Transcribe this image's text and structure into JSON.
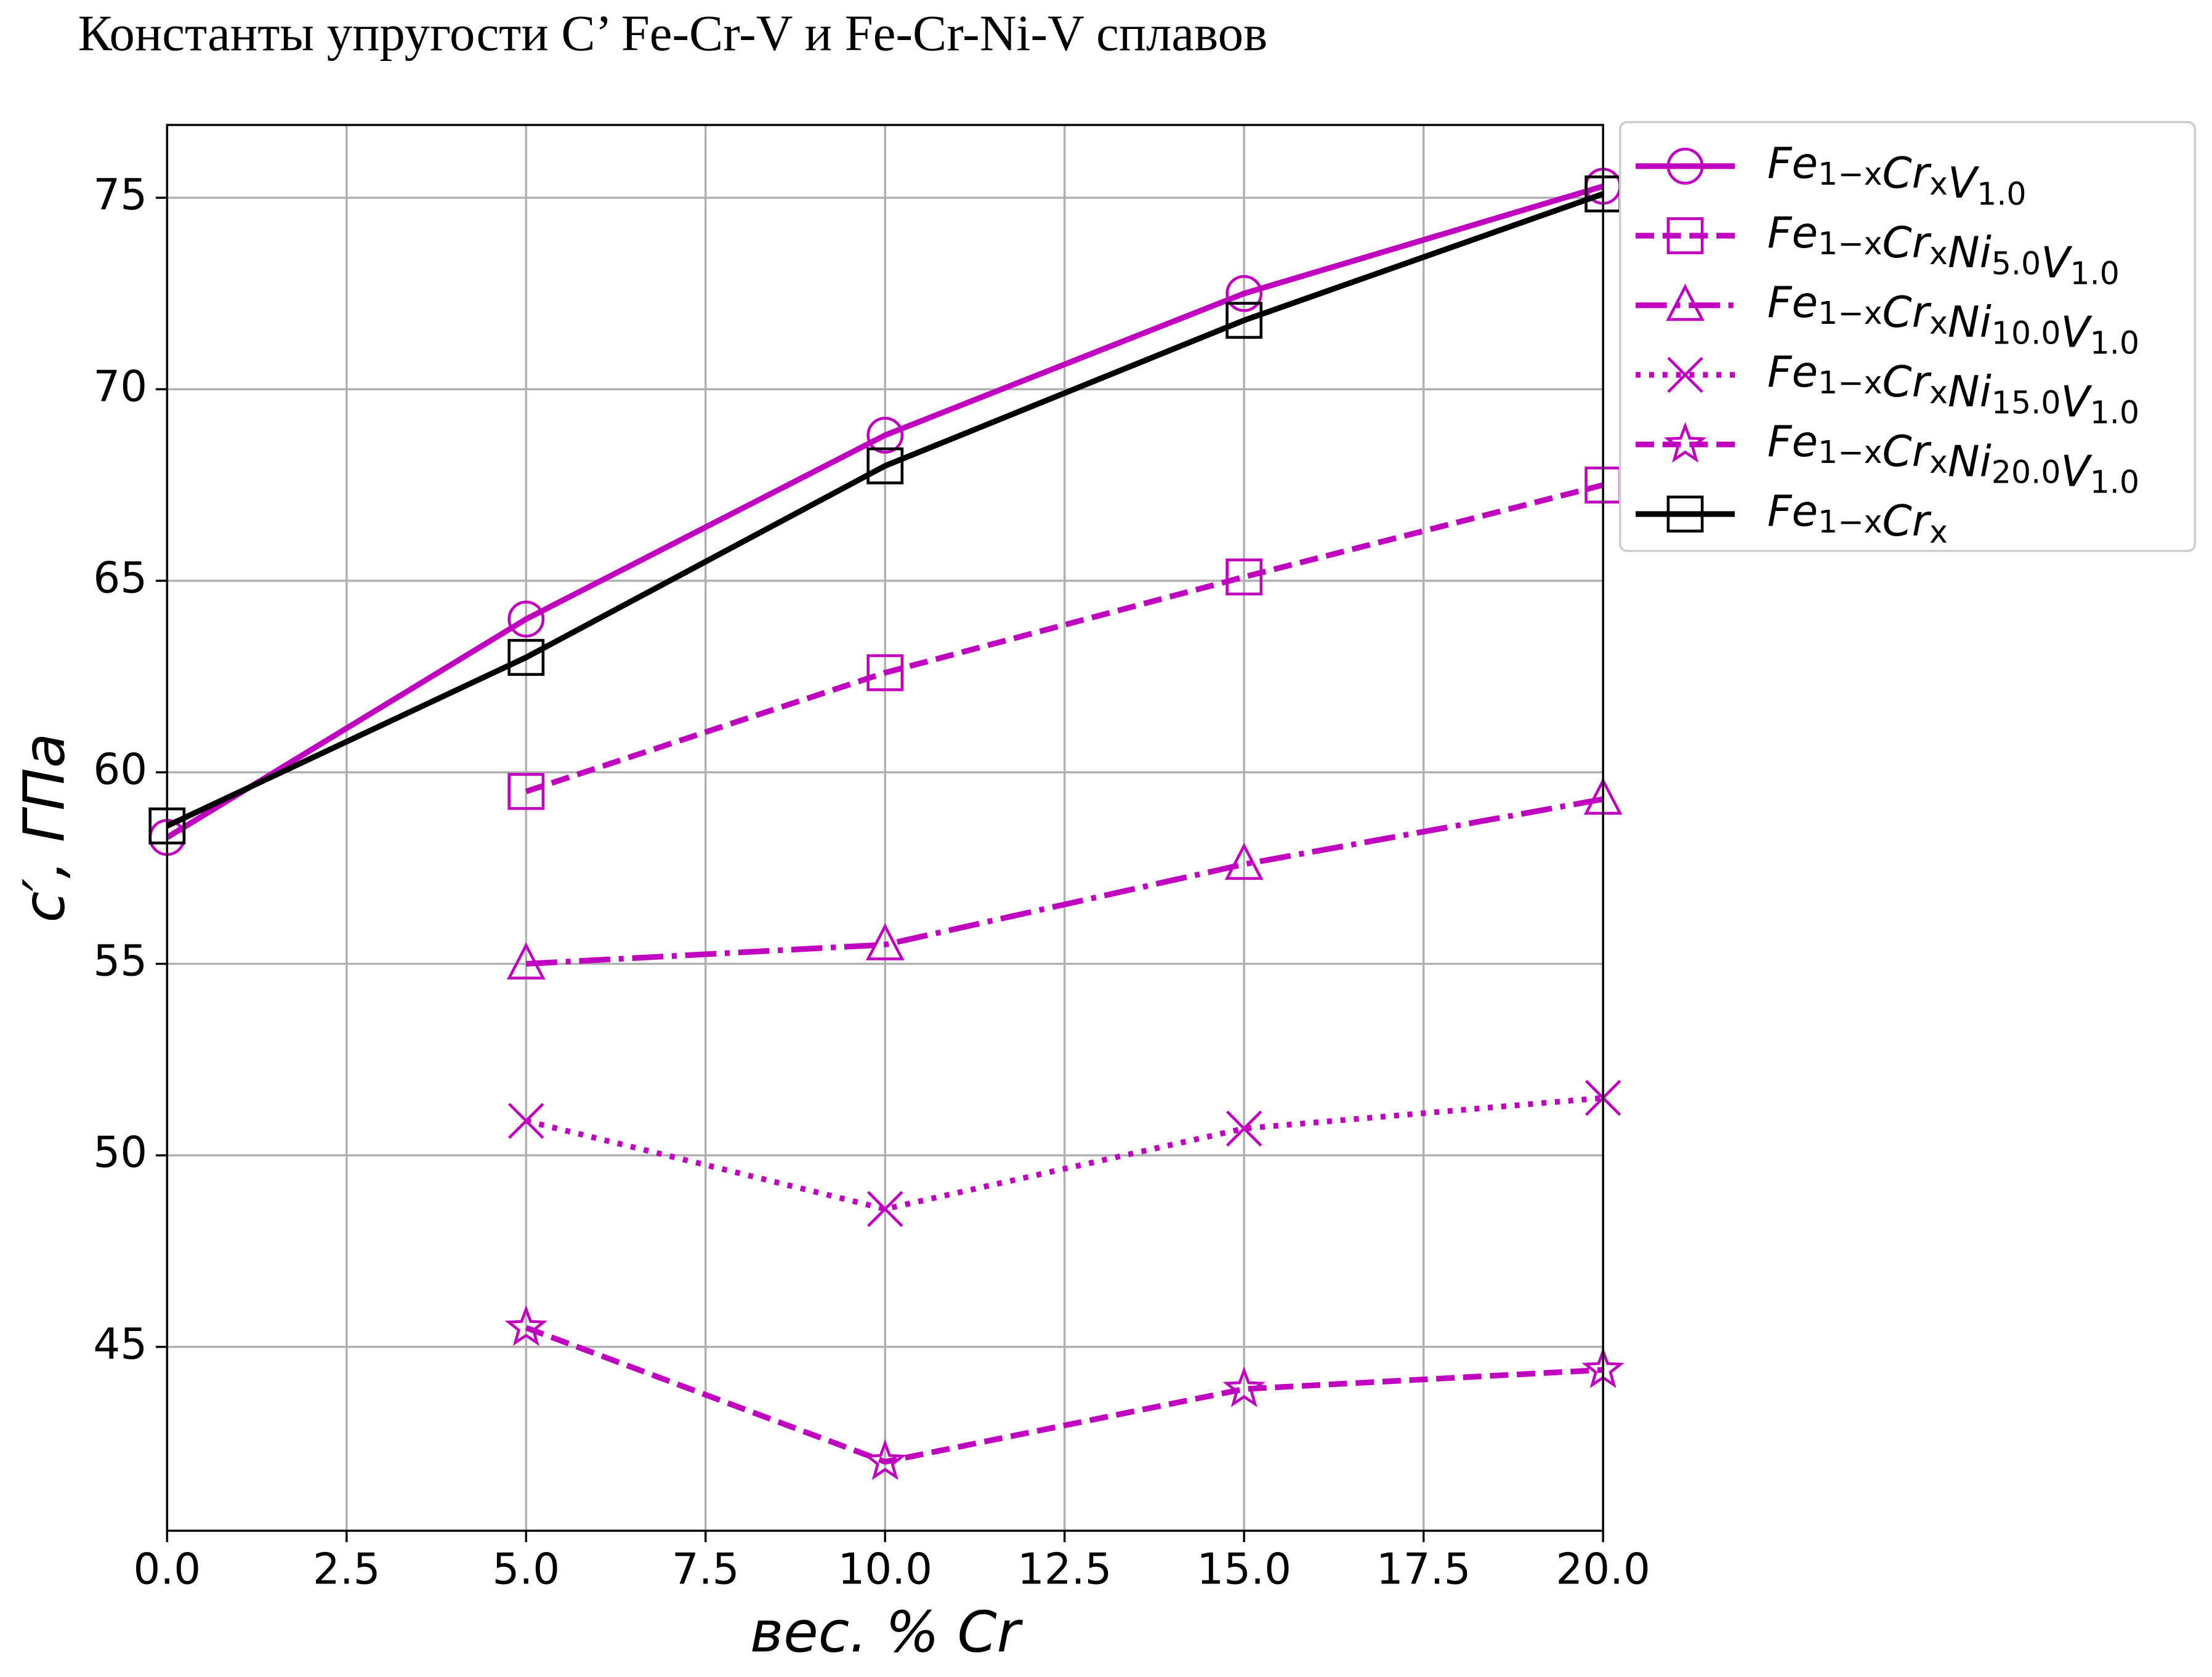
{
  "chart_data": {
    "type": "line",
    "title": "Константы упругости C’ Fe-Cr-V и Fe-Cr-Ni-V сплавов",
    "x_label": "вес. % Cr",
    "y_label": "c′, ГПа",
    "xlim": [
      0,
      20
    ],
    "ylim": [
      40.2,
      76.9
    ],
    "xticks": [
      {
        "value": 0,
        "label": "0.0"
      },
      {
        "value": 2.5,
        "label": "2.5"
      },
      {
        "value": 5,
        "label": "5.0"
      },
      {
        "value": 7.5,
        "label": "7.5"
      },
      {
        "value": 10,
        "label": "10.0"
      },
      {
        "value": 12.5,
        "label": "12.5"
      },
      {
        "value": 15,
        "label": "15.0"
      },
      {
        "value": 17.5,
        "label": "17.5"
      },
      {
        "value": 20,
        "label": "20.0"
      }
    ],
    "yticks": [
      45,
      50,
      55,
      60,
      65,
      70,
      75
    ],
    "grid": true,
    "legend": "outside-upper-right",
    "series": [
      {
        "name": "Fe1−xCrxV1.0",
        "color": "#bf00bf",
        "linestyle": "solid",
        "marker": "circle",
        "x": [
          0,
          5,
          10,
          15,
          20
        ],
        "values": [
          58.3,
          64.0,
          68.8,
          72.5,
          75.3
        ]
      },
      {
        "name": "Fe1−xCrxNi5.0V1.0",
        "color": "#bf00bf",
        "linestyle": "dashed",
        "marker": "square",
        "x": [
          5,
          10,
          15,
          20
        ],
        "values": [
          59.5,
          62.6,
          65.1,
          67.5
        ]
      },
      {
        "name": "Fe1−xCrxNi10.0V1.0",
        "color": "#bf00bf",
        "linestyle": "dashdot",
        "marker": "triangle",
        "x": [
          5,
          10,
          15,
          20
        ],
        "values": [
          55.0,
          55.5,
          57.6,
          59.3
        ]
      },
      {
        "name": "Fe1−xCrxNi15.0V1.0",
        "color": "#bf00bf",
        "linestyle": "dotted",
        "marker": "x",
        "x": [
          5,
          10,
          15,
          20
        ],
        "values": [
          50.9,
          48.6,
          50.7,
          51.5
        ]
      },
      {
        "name": "Fe1−xCrxNi20.0V1.0",
        "color": "#bf00bf",
        "linestyle": "dashed",
        "marker": "star",
        "x": [
          5,
          10,
          15,
          20
        ],
        "values": [
          45.5,
          42.0,
          43.9,
          44.4
        ]
      },
      {
        "name": "Fe1−xCrx",
        "color": "#000000",
        "linestyle": "solid",
        "marker": "square",
        "x": [
          0,
          5,
          10,
          15,
          20
        ],
        "values": [
          58.6,
          63.0,
          68.0,
          71.8,
          75.1
        ]
      }
    ]
  }
}
